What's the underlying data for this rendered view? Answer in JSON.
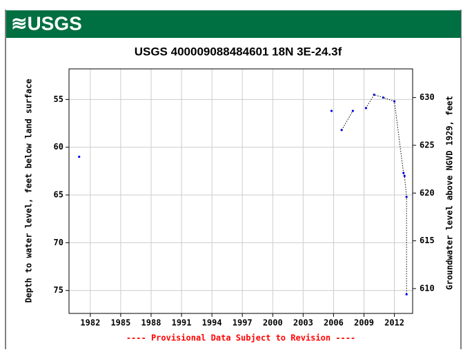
{
  "chart_data": {
    "type": "scatter",
    "logo": "≋USGS",
    "title": "USGS 400009088484601 18N 3E-24.3f",
    "ylabel": "Depth to water level, feet below land surface",
    "y2label": "Groundwater level above NGVD 1929, feet",
    "footnote": "---- Provisional Data Subject to Revision ----",
    "xlim": [
      1979.9,
      2013.8
    ],
    "xticks": [
      1982,
      1985,
      1988,
      1991,
      1994,
      1997,
      2000,
      2003,
      2006,
      2009,
      2012
    ],
    "ylim": [
      77.4,
      51.8
    ],
    "yticks": [
      55,
      60,
      65,
      70,
      75
    ],
    "y2lim": [
      607.4,
      633.0
    ],
    "y2ticks": [
      610,
      615,
      620,
      625,
      630
    ],
    "grid": true,
    "series": [
      {
        "style": "points",
        "color": "#0000ff",
        "x": [
          1980.9,
          2005.8,
          2006.8,
          2007.9,
          2009.2,
          2010.0,
          2010.9,
          2012.0,
          2012.9,
          2013.0,
          2013.2,
          2013.2
        ],
        "values": [
          61.0,
          56.2,
          58.2,
          56.2,
          55.9,
          54.5,
          54.8,
          55.2,
          62.7,
          63.0,
          65.2,
          75.4
        ]
      },
      {
        "style": "dotted-line",
        "color": "#000000",
        "x": [
          2006.8,
          2007.9,
          null,
          2009.2,
          2010.0,
          2010.9,
          2012.0,
          2012.9,
          2013.0,
          2013.2,
          2013.2
        ],
        "values": [
          58.2,
          56.2,
          null,
          55.9,
          54.5,
          54.8,
          55.2,
          62.7,
          63.0,
          65.2,
          75.4
        ]
      }
    ]
  }
}
